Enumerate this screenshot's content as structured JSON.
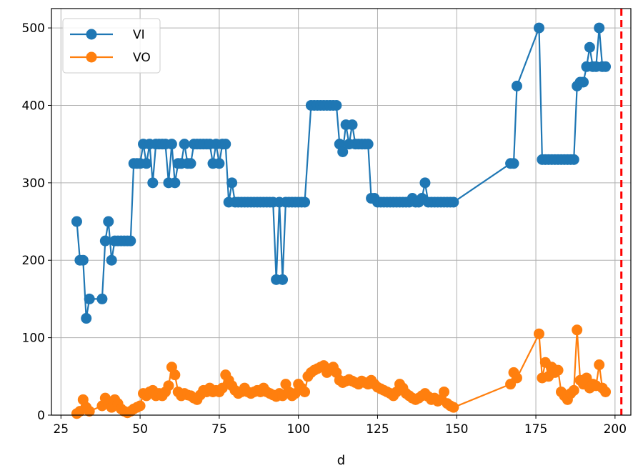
{
  "chart_data": {
    "type": "line",
    "title": "",
    "xlabel": "d",
    "ylabel": "",
    "xlim": [
      22,
      205
    ],
    "ylim": [
      0,
      525
    ],
    "xticks": [
      25,
      50,
      75,
      100,
      125,
      150,
      175,
      200
    ],
    "yticks": [
      0,
      100,
      200,
      300,
      400,
      500
    ],
    "grid": true,
    "legend_position": "top-left",
    "vline": {
      "x": 202,
      "color": "#ff0000",
      "style": "dashed"
    },
    "series": [
      {
        "name": "VI",
        "color": "#1f77b4",
        "points": [
          [
            30,
            250
          ],
          [
            31,
            200
          ],
          [
            32,
            200
          ],
          [
            33,
            125
          ],
          [
            34,
            150
          ],
          [
            38,
            150
          ],
          [
            39,
            225
          ],
          [
            40,
            250
          ],
          [
            41,
            200
          ],
          [
            42,
            225
          ],
          [
            43,
            225
          ],
          [
            44,
            225
          ],
          [
            45,
            225
          ],
          [
            46,
            225
          ],
          [
            47,
            225
          ],
          [
            48,
            325
          ],
          [
            49,
            325
          ],
          [
            50,
            325
          ],
          [
            51,
            350
          ],
          [
            52,
            325
          ],
          [
            53,
            350
          ],
          [
            54,
            300
          ],
          [
            55,
            350
          ],
          [
            56,
            350
          ],
          [
            57,
            350
          ],
          [
            58,
            350
          ],
          [
            59,
            300
          ],
          [
            60,
            350
          ],
          [
            61,
            300
          ],
          [
            62,
            325
          ],
          [
            63,
            325
          ],
          [
            64,
            350
          ],
          [
            65,
            325
          ],
          [
            66,
            325
          ],
          [
            67,
            350
          ],
          [
            68,
            350
          ],
          [
            69,
            350
          ],
          [
            70,
            350
          ],
          [
            71,
            350
          ],
          [
            72,
            350
          ],
          [
            73,
            325
          ],
          [
            74,
            350
          ],
          [
            75,
            325
          ],
          [
            76,
            350
          ],
          [
            77,
            350
          ],
          [
            78,
            275
          ],
          [
            79,
            300
          ],
          [
            80,
            275
          ],
          [
            81,
            275
          ],
          [
            82,
            275
          ],
          [
            83,
            275
          ],
          [
            84,
            275
          ],
          [
            85,
            275
          ],
          [
            86,
            275
          ],
          [
            87,
            275
          ],
          [
            88,
            275
          ],
          [
            89,
            275
          ],
          [
            90,
            275
          ],
          [
            91,
            275
          ],
          [
            92,
            275
          ],
          [
            93,
            175
          ],
          [
            94,
            275
          ],
          [
            95,
            175
          ],
          [
            96,
            275
          ],
          [
            97,
            275
          ],
          [
            98,
            275
          ],
          [
            99,
            275
          ],
          [
            100,
            275
          ],
          [
            101,
            275
          ],
          [
            102,
            275
          ],
          [
            104,
            400
          ],
          [
            105,
            400
          ],
          [
            106,
            400
          ],
          [
            107,
            400
          ],
          [
            108,
            400
          ],
          [
            109,
            400
          ],
          [
            110,
            400
          ],
          [
            111,
            400
          ],
          [
            112,
            400
          ],
          [
            113,
            350
          ],
          [
            114,
            340
          ],
          [
            115,
            375
          ],
          [
            116,
            350
          ],
          [
            117,
            375
          ],
          [
            118,
            350
          ],
          [
            119,
            350
          ],
          [
            120,
            350
          ],
          [
            121,
            350
          ],
          [
            122,
            350
          ],
          [
            123,
            280
          ],
          [
            124,
            280
          ],
          [
            125,
            275
          ],
          [
            126,
            275
          ],
          [
            127,
            275
          ],
          [
            128,
            275
          ],
          [
            129,
            275
          ],
          [
            130,
            275
          ],
          [
            131,
            275
          ],
          [
            132,
            275
          ],
          [
            133,
            275
          ],
          [
            134,
            275
          ],
          [
            135,
            275
          ],
          [
            136,
            280
          ],
          [
            137,
            275
          ],
          [
            138,
            275
          ],
          [
            139,
            280
          ],
          [
            140,
            300
          ],
          [
            141,
            275
          ],
          [
            142,
            275
          ],
          [
            143,
            275
          ],
          [
            144,
            275
          ],
          [
            145,
            275
          ],
          [
            146,
            275
          ],
          [
            147,
            275
          ],
          [
            148,
            275
          ],
          [
            149,
            275
          ],
          [
            167,
            325
          ],
          [
            168,
            325
          ],
          [
            169,
            425
          ],
          [
            176,
            500
          ],
          [
            177,
            330
          ],
          [
            178,
            330
          ],
          [
            179,
            330
          ],
          [
            180,
            330
          ],
          [
            181,
            330
          ],
          [
            182,
            330
          ],
          [
            183,
            330
          ],
          [
            184,
            330
          ],
          [
            185,
            330
          ],
          [
            186,
            330
          ],
          [
            187,
            330
          ],
          [
            188,
            425
          ],
          [
            189,
            430
          ],
          [
            190,
            430
          ],
          [
            191,
            450
          ],
          [
            192,
            475
          ],
          [
            193,
            450
          ],
          [
            194,
            450
          ],
          [
            195,
            500
          ],
          [
            196,
            450
          ],
          [
            197,
            450
          ]
        ]
      },
      {
        "name": "VO",
        "color": "#ff7f0e",
        "points": [
          [
            30,
            2
          ],
          [
            31,
            5
          ],
          [
            32,
            20
          ],
          [
            33,
            10
          ],
          [
            34,
            5
          ],
          [
            38,
            12
          ],
          [
            39,
            22
          ],
          [
            40,
            15
          ],
          [
            41,
            10
          ],
          [
            42,
            20
          ],
          [
            43,
            15
          ],
          [
            44,
            8
          ],
          [
            45,
            5
          ],
          [
            46,
            3
          ],
          [
            47,
            5
          ],
          [
            48,
            8
          ],
          [
            49,
            10
          ],
          [
            50,
            12
          ],
          [
            51,
            28
          ],
          [
            52,
            25
          ],
          [
            53,
            30
          ],
          [
            54,
            32
          ],
          [
            55,
            25
          ],
          [
            56,
            28
          ],
          [
            57,
            25
          ],
          [
            58,
            30
          ],
          [
            59,
            38
          ],
          [
            60,
            62
          ],
          [
            61,
            52
          ],
          [
            62,
            30
          ],
          [
            63,
            25
          ],
          [
            64,
            28
          ],
          [
            65,
            26
          ],
          [
            66,
            25
          ],
          [
            67,
            22
          ],
          [
            68,
            20
          ],
          [
            69,
            26
          ],
          [
            70,
            32
          ],
          [
            71,
            30
          ],
          [
            72,
            35
          ],
          [
            73,
            30
          ],
          [
            74,
            32
          ],
          [
            75,
            30
          ],
          [
            76,
            35
          ],
          [
            77,
            52
          ],
          [
            78,
            45
          ],
          [
            79,
            38
          ],
          [
            80,
            32
          ],
          [
            81,
            28
          ],
          [
            82,
            30
          ],
          [
            83,
            35
          ],
          [
            84,
            30
          ],
          [
            85,
            28
          ],
          [
            86,
            30
          ],
          [
            87,
            32
          ],
          [
            88,
            30
          ],
          [
            89,
            35
          ],
          [
            90,
            30
          ],
          [
            91,
            28
          ],
          [
            92,
            26
          ],
          [
            93,
            24
          ],
          [
            94,
            28
          ],
          [
            95,
            25
          ],
          [
            96,
            40
          ],
          [
            97,
            30
          ],
          [
            98,
            25
          ],
          [
            99,
            28
          ],
          [
            100,
            40
          ],
          [
            101,
            35
          ],
          [
            102,
            30
          ],
          [
            103,
            50
          ],
          [
            104,
            55
          ],
          [
            105,
            58
          ],
          [
            106,
            60
          ],
          [
            107,
            62
          ],
          [
            108,
            64
          ],
          [
            109,
            55
          ],
          [
            110,
            60
          ],
          [
            111,
            62
          ],
          [
            112,
            55
          ],
          [
            113,
            45
          ],
          [
            114,
            42
          ],
          [
            115,
            44
          ],
          [
            116,
            46
          ],
          [
            117,
            44
          ],
          [
            118,
            42
          ],
          [
            119,
            40
          ],
          [
            120,
            44
          ],
          [
            121,
            42
          ],
          [
            122,
            40
          ],
          [
            123,
            45
          ],
          [
            124,
            40
          ],
          [
            125,
            36
          ],
          [
            126,
            34
          ],
          [
            127,
            32
          ],
          [
            128,
            30
          ],
          [
            129,
            28
          ],
          [
            130,
            25
          ],
          [
            131,
            30
          ],
          [
            132,
            40
          ],
          [
            133,
            35
          ],
          [
            134,
            28
          ],
          [
            135,
            25
          ],
          [
            136,
            22
          ],
          [
            137,
            20
          ],
          [
            138,
            22
          ],
          [
            139,
            25
          ],
          [
            140,
            28
          ],
          [
            141,
            24
          ],
          [
            142,
            20
          ],
          [
            143,
            22
          ],
          [
            144,
            18
          ],
          [
            145,
            20
          ],
          [
            146,
            30
          ],
          [
            147,
            15
          ],
          [
            148,
            12
          ],
          [
            149,
            10
          ],
          [
            167,
            40
          ],
          [
            168,
            55
          ],
          [
            169,
            48
          ],
          [
            176,
            105
          ],
          [
            177,
            48
          ],
          [
            178,
            68
          ],
          [
            179,
            50
          ],
          [
            180,
            62
          ],
          [
            181,
            55
          ],
          [
            182,
            58
          ],
          [
            183,
            30
          ],
          [
            184,
            25
          ],
          [
            185,
            20
          ],
          [
            186,
            28
          ],
          [
            187,
            32
          ],
          [
            188,
            110
          ],
          [
            189,
            45
          ],
          [
            190,
            40
          ],
          [
            191,
            48
          ],
          [
            192,
            35
          ],
          [
            193,
            40
          ],
          [
            194,
            38
          ],
          [
            195,
            65
          ],
          [
            196,
            35
          ],
          [
            197,
            30
          ]
        ]
      }
    ]
  }
}
